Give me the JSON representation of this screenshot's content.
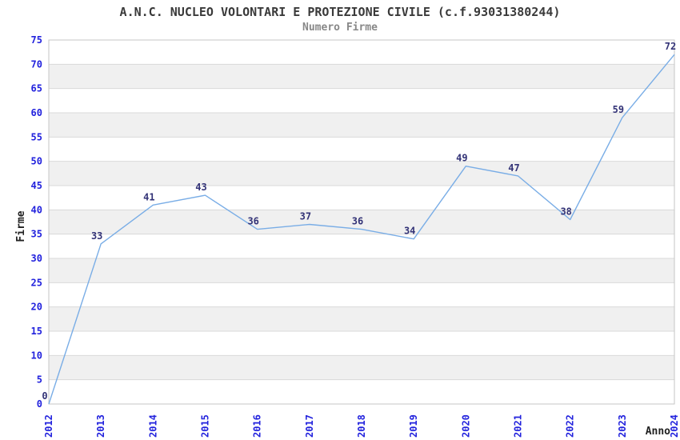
{
  "page": {
    "title": "A.N.C. NUCLEO VOLONTARI E PROTEZIONE CIVILE (c.f.93031380244)",
    "subtitle": "Numero Firme"
  },
  "chart_data": {
    "type": "line",
    "title": "A.N.C. NUCLEO VOLONTARI E PROTEZIONE CIVILE (c.f.93031380244)",
    "subtitle": "Numero Firme",
    "xlabel": "Anno",
    "ylabel": "Firme",
    "categories": [
      "2012",
      "2013",
      "2014",
      "2015",
      "2016",
      "2017",
      "2018",
      "2019",
      "2020",
      "2021",
      "2022",
      "2023",
      "2024"
    ],
    "series": [
      {
        "name": "Numero Firme",
        "values": [
          0,
          33,
          41,
          43,
          36,
          37,
          36,
          34,
          49,
          47,
          38,
          59,
          72
        ]
      }
    ],
    "ylim": [
      0,
      75
    ],
    "ytick_step": 5,
    "yticks": [
      0,
      5,
      10,
      15,
      20,
      25,
      30,
      35,
      40,
      45,
      50,
      55,
      60,
      65,
      70,
      75
    ],
    "grid": "horizontal-bands-alternating",
    "legend": "none",
    "point_labels_visible": true,
    "x_tick_rotation_deg": -90,
    "colors": {
      "line": "#79ade6",
      "tick_label": "#2222dd",
      "point_label": "#333377",
      "band_alt": "#f0f0f0",
      "band_base": "#ffffff",
      "grid_line": "#dadada",
      "plot_border": "#c6c6c6",
      "title": "#3a3a3a",
      "subtitle": "#888888",
      "axis_title": "#222222"
    }
  }
}
